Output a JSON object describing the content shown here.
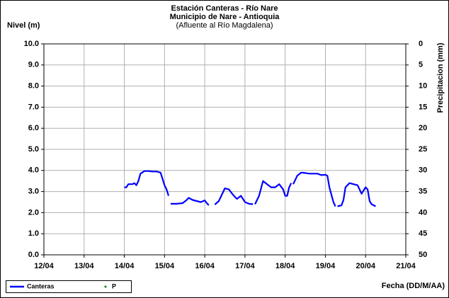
{
  "chart_data": {
    "type": "line",
    "title": "Estación Canteras - Río Nare",
    "subtitle": "Municipio de Nare - Antioquia",
    "annotation": "(Afluente al Río Magdalena)",
    "y_label": "Nivel (m)",
    "y2_label": "Precipitacion (mm)",
    "x_label": "Fecha (DD/M/AA)",
    "x": [
      14.0,
      14.05,
      14.1,
      14.15,
      14.2,
      14.25,
      14.3,
      14.35,
      14.4,
      14.5,
      14.6,
      14.7,
      14.8,
      14.9,
      14.95,
      15.0,
      15.05,
      15.1,
      15.12,
      15.15,
      15.3,
      15.45,
      15.55,
      15.6,
      15.7,
      15.8,
      15.9,
      16.0,
      16.05,
      16.1,
      16.18,
      16.25,
      16.35,
      16.4,
      16.5,
      16.6,
      16.7,
      16.8,
      16.9,
      17.0,
      17.1,
      17.2,
      17.22,
      17.25,
      17.35,
      17.45,
      17.55,
      17.65,
      17.75,
      17.85,
      17.95,
      18.0,
      18.05,
      18.1,
      18.15,
      18.18,
      18.2,
      18.3,
      18.4,
      18.5,
      18.6,
      18.8,
      18.9,
      19.0,
      19.05,
      19.1,
      19.2,
      19.25,
      19.28,
      19.3,
      19.4,
      19.45,
      19.5,
      19.6,
      19.7,
      19.8,
      19.9,
      20.0,
      20.05,
      20.1,
      20.15,
      20.2,
      20.25
    ],
    "series": [
      {
        "name": "Canteras",
        "color": "#0000ff",
        "mode": "lines",
        "values": [
          3.2,
          3.2,
          3.35,
          3.35,
          3.35,
          3.4,
          3.3,
          3.5,
          3.85,
          3.97,
          3.97,
          3.95,
          3.95,
          3.9,
          3.6,
          3.3,
          3.1,
          2.8,
          null,
          2.42,
          2.42,
          2.45,
          2.6,
          2.7,
          2.6,
          2.55,
          2.5,
          2.58,
          2.45,
          2.35,
          null,
          2.38,
          2.55,
          2.75,
          3.15,
          3.1,
          2.85,
          2.65,
          2.8,
          2.5,
          2.42,
          2.4,
          null,
          2.4,
          2.8,
          3.5,
          3.35,
          3.2,
          3.2,
          3.35,
          3.1,
          2.8,
          2.8,
          3.2,
          3.4,
          null,
          3.35,
          3.75,
          3.9,
          3.88,
          3.85,
          3.85,
          3.78,
          3.8,
          3.75,
          3.2,
          2.5,
          2.3,
          null,
          2.3,
          2.35,
          2.6,
          3.2,
          3.4,
          3.35,
          3.3,
          2.9,
          3.2,
          3.1,
          2.55,
          2.4,
          2.35,
          2.3
        ]
      },
      {
        "name": "P",
        "color": "#008000",
        "mode": "markers",
        "axis": "y2",
        "values": [
          null,
          null,
          null,
          null,
          null,
          null,
          null,
          null,
          null,
          null,
          null,
          null,
          null,
          null,
          null,
          null,
          null,
          null,
          null,
          null,
          null,
          null,
          null,
          null,
          null,
          null,
          null,
          null,
          null,
          null,
          null,
          null,
          null,
          null,
          null,
          null,
          null,
          null,
          null,
          null,
          null,
          null,
          null,
          null,
          null,
          null,
          null,
          null,
          null,
          null,
          null,
          null,
          null,
          null,
          null,
          null,
          null,
          null,
          null,
          null,
          null,
          null,
          null,
          null,
          null,
          null,
          null,
          null,
          null,
          null,
          null,
          null,
          null,
          null,
          null,
          null,
          null,
          null,
          null,
          null,
          null,
          null,
          null
        ]
      }
    ],
    "xlim": [
      12,
      21
    ],
    "xticks": [
      {
        "value": 12,
        "label": "12/04"
      },
      {
        "value": 13,
        "label": "13/04"
      },
      {
        "value": 14,
        "label": "14/04"
      },
      {
        "value": 15,
        "label": "15/04"
      },
      {
        "value": 16,
        "label": "16/04"
      },
      {
        "value": 17,
        "label": "17/04"
      },
      {
        "value": 18,
        "label": "18/04"
      },
      {
        "value": 19,
        "label": "19/04"
      },
      {
        "value": 20,
        "label": "20/04"
      },
      {
        "value": 21,
        "label": "21/04"
      }
    ],
    "ylim": [
      0,
      10
    ],
    "yticks": [
      {
        "value": 0,
        "label": "0.0"
      },
      {
        "value": 1,
        "label": "1.0"
      },
      {
        "value": 2,
        "label": "2.0"
      },
      {
        "value": 3,
        "label": "3.0"
      },
      {
        "value": 4,
        "label": "4.0"
      },
      {
        "value": 5,
        "label": "5.0"
      },
      {
        "value": 6,
        "label": "6.0"
      },
      {
        "value": 7,
        "label": "7.0"
      },
      {
        "value": 8,
        "label": "8.0"
      },
      {
        "value": 9,
        "label": "9.0"
      },
      {
        "value": 10,
        "label": "10.0"
      }
    ],
    "y2lim": [
      50,
      0
    ],
    "y2ticks": [
      0,
      5,
      10,
      15,
      20,
      25,
      30,
      35,
      40,
      45,
      50
    ],
    "grid": true
  }
}
